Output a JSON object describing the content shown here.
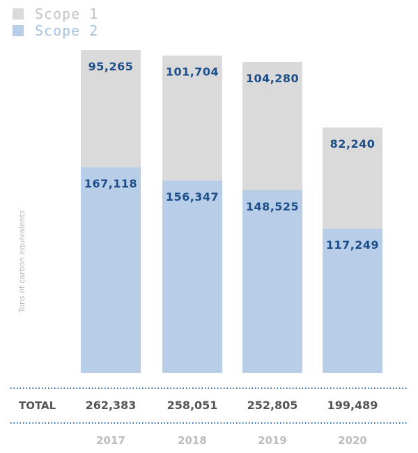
{
  "chart_data": {
    "type": "bar",
    "stacked": true,
    "categories": [
      "2017",
      "2018",
      "2019",
      "2020"
    ],
    "series": [
      {
        "name": "Scope 1",
        "color": "#dadada",
        "values": [
          95265,
          101704,
          104280,
          82240
        ],
        "labels": [
          "95,265",
          "101,704",
          "104,280",
          "82,240"
        ]
      },
      {
        "name": "Scope 2",
        "color": "#b7cde8",
        "values": [
          167118,
          156347,
          148525,
          117249
        ],
        "labels": [
          "167,118",
          "156,347",
          "148,525",
          "117,249"
        ]
      }
    ],
    "ylabel": "Tons of carbon equivalents",
    "ylim": [
      0,
      262383
    ],
    "grid": false,
    "legend_position": "top-left",
    "totals": {
      "label": "TOTAL",
      "values": [
        "262,383",
        "258,051",
        "252,805",
        "199,489"
      ]
    },
    "colors": {
      "label_text": "#1d4e89",
      "divider": "#2b6cb0",
      "muted_text": "#bdbdbd",
      "total_text": "#555555"
    }
  }
}
